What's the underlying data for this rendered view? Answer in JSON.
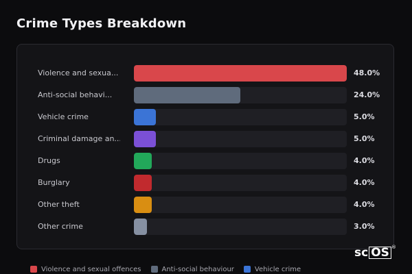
{
  "header": {
    "title": "Crime Types Breakdown"
  },
  "chart_data": {
    "type": "bar",
    "orientation": "horizontal",
    "title": "Crime Types Breakdown",
    "categories": [
      "Violence and sexua...",
      "Anti-social behavi...",
      "Vehicle crime",
      "Criminal damage an...",
      "Drugs",
      "Burglary",
      "Other theft",
      "Other crime"
    ],
    "values": [
      48.0,
      24.0,
      5.0,
      5.0,
      4.0,
      4.0,
      4.0,
      3.0
    ],
    "value_labels": [
      "48.0%",
      "24.0%",
      "5.0%",
      "5.0%",
      "4.0%",
      "4.0%",
      "4.0%",
      "3.0%"
    ],
    "colors": [
      "#d9474b",
      "#5f6b7c",
      "#3b74d6",
      "#7b50d6",
      "#22a85a",
      "#c12a2e",
      "#d98e12",
      "#8690a2"
    ],
    "xlim": [
      0,
      48
    ],
    "grid": false,
    "legend_position": "bottom"
  },
  "legend": {
    "items": [
      {
        "label": "Violence and sexual offences",
        "color": "#d9474b"
      },
      {
        "label": "Anti-social behaviour",
        "color": "#5f6b7c"
      },
      {
        "label": "Vehicle crime",
        "color": "#3b74d6"
      }
    ]
  },
  "branding": {
    "logo_text": "scOS"
  }
}
